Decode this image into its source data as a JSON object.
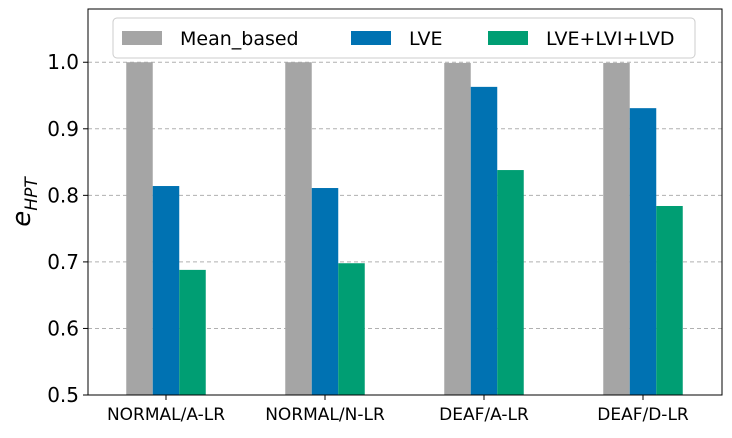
{
  "chart_data": {
    "type": "bar",
    "title": "",
    "xlabel": "",
    "ylabel_main": "e",
    "ylabel_sub": "HPT",
    "ylim": [
      0.5,
      1.08
    ],
    "yticks": [
      0.5,
      0.6,
      0.7,
      0.8,
      0.9,
      1.0
    ],
    "ytick_labels": [
      "0.5",
      "0.6",
      "0.7",
      "0.8",
      "0.9",
      "1.0"
    ],
    "grid": "y-dashed",
    "legend_position": "top",
    "categories": [
      "NORMAL/A-LR",
      "NORMAL/N-LR",
      "DEAF/A-LR",
      "DEAF/D-LR"
    ],
    "series": [
      {
        "name": "Mean_based",
        "color": "#a5a5a5",
        "values": [
          1.0,
          1.0,
          0.999,
          0.999
        ]
      },
      {
        "name": "LVE",
        "color": "#0072b2",
        "values": [
          0.814,
          0.811,
          0.963,
          0.931
        ]
      },
      {
        "name": "LVE+LVI+LVD",
        "color": "#009e73",
        "values": [
          0.688,
          0.698,
          0.838,
          0.784
        ]
      }
    ]
  }
}
